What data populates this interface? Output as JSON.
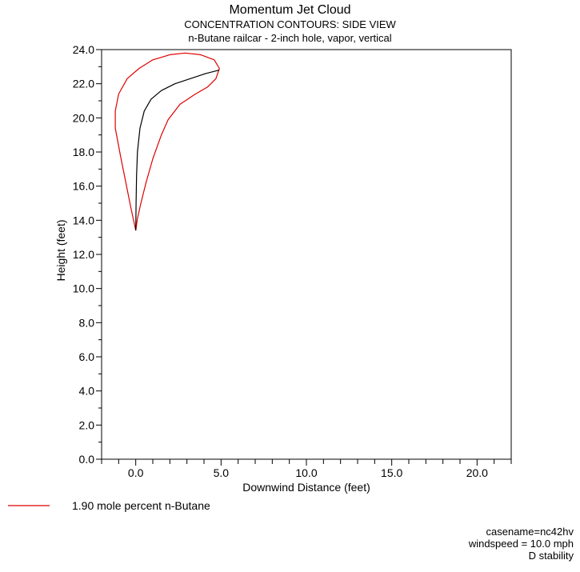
{
  "chart_data": {
    "type": "line",
    "title": "Momentum Jet Cloud",
    "subtitle": "CONCENTRATION CONTOURS: SIDE VIEW",
    "subtitle2": "n-Butane railcar - 2-inch hole, vapor, vertical",
    "xlabel": "Downwind Distance (feet)",
    "ylabel": "Height (feet)",
    "xlim": [
      -2.0,
      22.0
    ],
    "ylim": [
      0.0,
      24.0
    ],
    "xticks": [
      "0.0",
      "5.0",
      "10.0",
      "15.0",
      "20.0"
    ],
    "xtick_values": [
      0,
      5,
      10,
      15,
      20
    ],
    "yticks": [
      "0.0",
      "2.0",
      "4.0",
      "6.0",
      "8.0",
      "10.0",
      "12.0",
      "14.0",
      "16.0",
      "18.0",
      "20.0",
      "22.0",
      "24.0"
    ],
    "ytick_values": [
      0,
      2,
      4,
      6,
      8,
      10,
      12,
      14,
      16,
      18,
      20,
      22,
      24
    ],
    "legend_position": "bottom-left",
    "series": [
      {
        "name": "1.90  mole percent n-Butane",
        "color": "#e00000",
        "x": [
          0.0,
          -0.3,
          -0.6,
          -0.9,
          -1.2,
          -1.2,
          -1.0,
          -0.5,
          0.2,
          1.0,
          2.0,
          2.9,
          3.8,
          4.6,
          4.9,
          4.7,
          4.2,
          3.5,
          2.6,
          1.9,
          1.5,
          1.0,
          0.6,
          0.3,
          0.1,
          0.0
        ],
        "y": [
          13.4,
          14.8,
          16.3,
          17.8,
          19.4,
          20.4,
          21.4,
          22.3,
          22.9,
          23.4,
          23.7,
          23.8,
          23.7,
          23.4,
          22.9,
          22.3,
          21.8,
          21.4,
          20.8,
          19.9,
          19.0,
          17.6,
          16.2,
          15.0,
          14.1,
          13.4
        ]
      },
      {
        "name": "",
        "color": "#000000",
        "x": [
          0.0,
          0.02,
          0.05,
          0.1,
          0.25,
          0.5,
          0.9,
          1.5,
          2.3,
          3.2,
          4.1,
          4.9
        ],
        "y": [
          13.4,
          15.0,
          16.6,
          18.0,
          19.4,
          20.4,
          21.1,
          21.6,
          22.0,
          22.3,
          22.6,
          22.8
        ]
      }
    ]
  },
  "info": {
    "casename": "casename=nc42hv",
    "windspeed": "windspeed = 10.0 mph",
    "stability": "D stability"
  }
}
